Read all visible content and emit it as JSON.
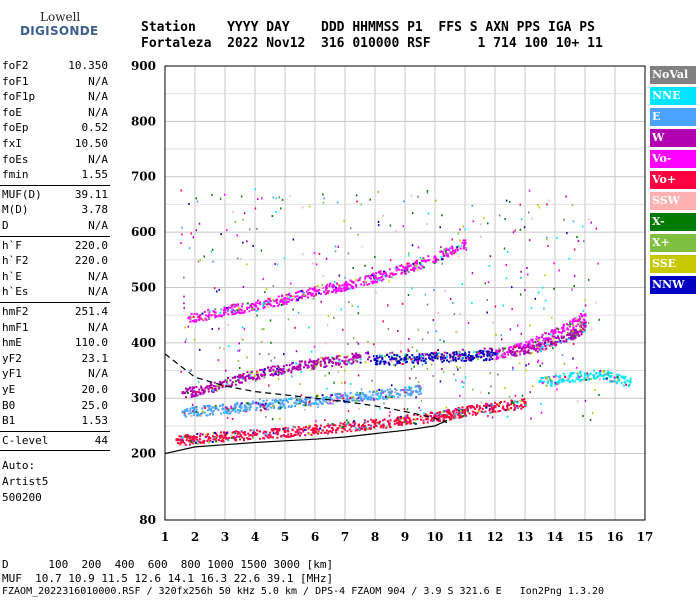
{
  "logo": {
    "line1": "Lowell",
    "line2": "DIGISONDE"
  },
  "header": {
    "line1": "Station    YYYY DAY    DDD HHMMSS P1  FFS S AXN PPS IGA PS",
    "line2": "Fortaleza  2022 Nov12  316 010000 RSF      1 714 100 10+ 11"
  },
  "params_group1": [
    {
      "label": "foF2",
      "value": "10.350"
    },
    {
      "label": "foF1",
      "value": "N/A"
    },
    {
      "label": "foF1p",
      "value": "N/A"
    },
    {
      "label": "foE",
      "value": "N/A"
    },
    {
      "label": "foEp",
      "value": "0.52"
    },
    {
      "label": "fxI",
      "value": "10.50"
    },
    {
      "label": "foEs",
      "value": "N/A"
    },
    {
      "label": "fmin",
      "value": "1.55"
    }
  ],
  "params_group2": [
    {
      "label": "MUF(D)",
      "value": "39.11"
    },
    {
      "label": "M(D)",
      "value": "3.78"
    },
    {
      "label": "D",
      "value": "N/A"
    }
  ],
  "params_group3": [
    {
      "label": "h`F",
      "value": "220.0"
    },
    {
      "label": "h`F2",
      "value": "220.0"
    },
    {
      "label": "h`E",
      "value": "N/A"
    },
    {
      "label": "h`Es",
      "value": "N/A"
    }
  ],
  "params_group4": [
    {
      "label": "hmF2",
      "value": "251.4"
    },
    {
      "label": "hmF1",
      "value": "N/A"
    },
    {
      "label": "hmE",
      "value": "110.0"
    },
    {
      "label": "yF2",
      "value": "23.1"
    },
    {
      "label": "yF1",
      "value": "N/A"
    },
    {
      "label": "yE",
      "value": "20.0"
    },
    {
      "label": "B0",
      "value": "25.0"
    },
    {
      "label": "B1",
      "value": "1.53"
    }
  ],
  "params_group5": [
    {
      "label": "C-level",
      "value": "44"
    }
  ],
  "auto": {
    "line1": "Auto:",
    "line2": "Artist5",
    "line3": "500200"
  },
  "footer": {
    "d_row": "D      100  200  400  600  800 1000 1500 3000 [km]",
    "muf_row": "MUF  10.7 10.9 11.5 12.6 14.1 16.3 22.6 39.1 [MHz]",
    "info_row": "FZAOM_2022316010000.RSF / 320fx256h 50 kHz 5.0 km / DPS-4 FZAOM 904 / 3.9 S 321.6 E   Ion2Png 1.3.20"
  },
  "legend": [
    {
      "label": "NoVal",
      "color": "#808080"
    },
    {
      "label": "NNE",
      "color": "#00e5ff"
    },
    {
      "label": "E",
      "color": "#4aa3ff"
    },
    {
      "label": "W",
      "color": "#b000b0"
    },
    {
      "label": "Vo-",
      "color": "#ff00ff"
    },
    {
      "label": "Vo+",
      "color": "#ff0040"
    },
    {
      "label": "SSW",
      "color": "#ffb0b0"
    },
    {
      "label": "X-",
      "color": "#007a00"
    },
    {
      "label": "X+",
      "color": "#80c040"
    },
    {
      "label": "SSE",
      "color": "#c8c800"
    },
    {
      "label": "NNW",
      "color": "#0000c0"
    }
  ],
  "chart_data": {
    "type": "scatter",
    "title": "",
    "xlabel": "",
    "ylabel": "",
    "xlim": [
      1,
      17
    ],
    "ylim": [
      80,
      900
    ],
    "x_ticks": [
      "1",
      "2",
      "3",
      "4",
      "5",
      "6",
      "7",
      "8",
      "9",
      "10",
      "11",
      "12",
      "13",
      "14",
      "15",
      "16",
      "17"
    ],
    "y_ticks": [
      "80",
      "200",
      "300",
      "400",
      "500",
      "600",
      "700",
      "800",
      "900"
    ],
    "grid": true,
    "legend_position": "right",
    "series": [
      {
        "name": "Vo+",
        "points": [
          [
            1.4,
            225
          ],
          [
            2,
            228
          ],
          [
            3,
            232
          ],
          [
            4,
            236
          ],
          [
            5,
            240
          ],
          [
            6,
            245
          ],
          [
            7,
            250
          ],
          [
            8,
            255
          ],
          [
            9,
            262
          ],
          [
            10,
            268
          ],
          [
            10.5,
            272
          ],
          [
            11,
            278
          ],
          [
            12,
            285
          ],
          [
            13,
            292
          ]
        ]
      },
      {
        "name": "E",
        "points": [
          [
            1.6,
            275
          ],
          [
            2.5,
            280
          ],
          [
            3.5,
            285
          ],
          [
            4.5,
            290
          ],
          [
            5.5,
            295
          ],
          [
            6.5,
            300
          ],
          [
            7.5,
            305
          ],
          [
            8.5,
            310
          ],
          [
            9.5,
            318
          ]
        ]
      },
      {
        "name": "Vo-",
        "points": [
          [
            1.8,
            445
          ],
          [
            3,
            460
          ],
          [
            4,
            468
          ],
          [
            5,
            480
          ],
          [
            6,
            495
          ],
          [
            7,
            505
          ],
          [
            8,
            520
          ],
          [
            9,
            535
          ],
          [
            10,
            555
          ],
          [
            11,
            580
          ],
          [
            12,
            380
          ],
          [
            13,
            395
          ],
          [
            14,
            420
          ],
          [
            15,
            450
          ]
        ]
      },
      {
        "name": "W",
        "points": [
          [
            1.6,
            310
          ],
          [
            2.5,
            320
          ],
          [
            3.5,
            338
          ],
          [
            4.5,
            350
          ],
          [
            5.5,
            360
          ],
          [
            6.5,
            368
          ],
          [
            7.5,
            375
          ],
          [
            12.5,
            385
          ],
          [
            13.5,
            395
          ],
          [
            14.5,
            415
          ],
          [
            15,
            430
          ]
        ]
      },
      {
        "name": "NNW",
        "points": [
          [
            8,
            370
          ],
          [
            9,
            372
          ],
          [
            10,
            375
          ],
          [
            11,
            378
          ],
          [
            12,
            380
          ]
        ]
      },
      {
        "name": "NNE",
        "points": [
          [
            13.5,
            330
          ],
          [
            14.5,
            340
          ],
          [
            15.5,
            345
          ],
          [
            16.5,
            330
          ]
        ]
      }
    ],
    "curves": [
      {
        "name": "profile-solid",
        "points": [
          [
            1,
            200
          ],
          [
            2,
            212
          ],
          [
            3,
            216
          ],
          [
            4,
            220
          ],
          [
            5,
            223
          ],
          [
            6,
            226
          ],
          [
            7,
            230
          ],
          [
            8,
            236
          ],
          [
            9,
            242
          ],
          [
            10,
            250
          ],
          [
            10.4,
            260
          ]
        ]
      },
      {
        "name": "profile-dashed",
        "points": [
          [
            1,
            380
          ],
          [
            2,
            338
          ],
          [
            3,
            322
          ],
          [
            4,
            312
          ],
          [
            5,
            306
          ],
          [
            6,
            300
          ],
          [
            7,
            294
          ],
          [
            8,
            286
          ],
          [
            9,
            276
          ],
          [
            10,
            264
          ],
          [
            10.4,
            256
          ]
        ]
      }
    ]
  }
}
